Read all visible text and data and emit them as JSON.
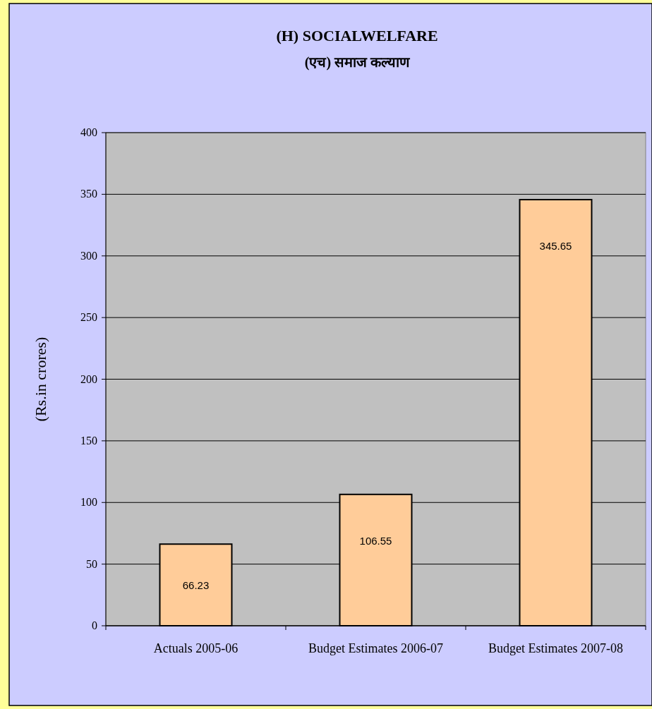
{
  "chart_data": {
    "type": "bar",
    "title": "(H) SOCIALWELFARE",
    "subtitle": "(एच) समाज कल्याण",
    "ylabel": "(Rs.in crores)",
    "categories": [
      "Actuals 2005-06",
      "Budget Estimates 2006-07",
      "Budget Estimates 2007-08"
    ],
    "values": [
      66.23,
      106.55,
      345.65
    ],
    "color": "#ffcc99",
    "ylim": [
      0,
      400
    ],
    "yticks": [
      0,
      50,
      100,
      150,
      200,
      250,
      300,
      350,
      400
    ],
    "grid": "y",
    "data_labels": true
  }
}
